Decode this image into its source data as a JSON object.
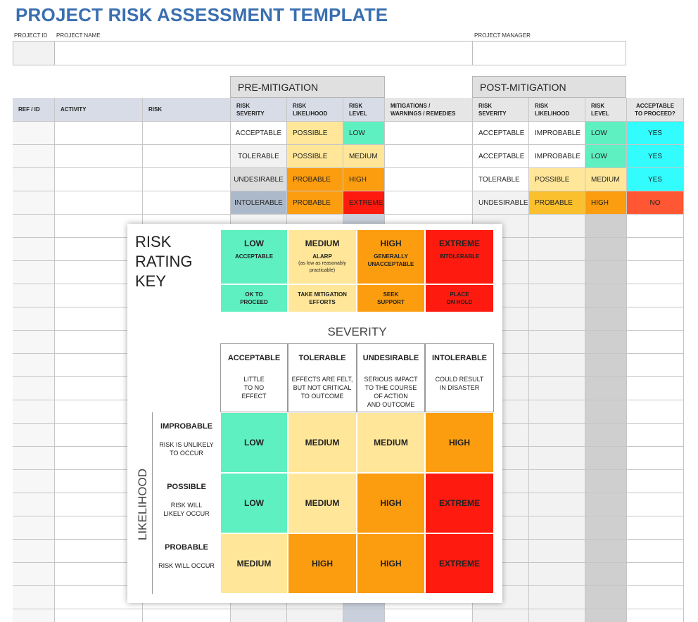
{
  "title": "PROJECT RISK ASSESSMENT TEMPLATE",
  "info": {
    "project_id_label": "PROJECT ID",
    "project_name_label": "PROJECT NAME",
    "project_manager_label": "PROJECT MANAGER"
  },
  "groups": {
    "pre": "PRE-MITIGATION",
    "post": "POST-MITIGATION"
  },
  "columns": {
    "ref": "REF / ID",
    "activity": "ACTIVITY",
    "risk": "RISK",
    "pre_severity": [
      "RISK",
      "SEVERITY"
    ],
    "pre_likelihood": [
      "RISK",
      "LIKELIHOOD"
    ],
    "pre_level": [
      "RISK",
      "LEVEL"
    ],
    "mitigations": [
      "MITIGATIONS /",
      "WARNINGS / REMEDIES"
    ],
    "post_severity": [
      "RISK",
      "SEVERITY"
    ],
    "post_likelihood": [
      "RISK",
      "LIKELIHOOD"
    ],
    "post_level": [
      "RISK",
      "LEVEL"
    ],
    "proceed": [
      "ACCEPTABLE",
      "TO PROCEED?"
    ]
  },
  "rows": [
    {
      "pre_sev": "ACCEPTABLE",
      "pre_lik": "POSSIBLE",
      "pre_lvl": "LOW",
      "post_sev": "ACCEPTABLE",
      "post_lik": "IMPROBABLE",
      "post_lvl": "LOW",
      "proceed": "YES"
    },
    {
      "pre_sev": "TOLERABLE",
      "pre_lik": "POSSIBLE",
      "pre_lvl": "MEDIUM",
      "post_sev": "ACCEPTABLE",
      "post_lik": "IMPROBABLE",
      "post_lvl": "LOW",
      "proceed": "YES"
    },
    {
      "pre_sev": "UNDESIRABLE",
      "pre_lik": "PROBABLE",
      "pre_lvl": "HIGH",
      "post_sev": "TOLERABLE",
      "post_lik": "POSSIBLE",
      "post_lvl": "MEDIUM",
      "proceed": "YES"
    },
    {
      "pre_sev": "INTOLERABLE",
      "pre_lik": "PROBABLE",
      "pre_lvl": "EXTREME",
      "post_sev": "UNDESIRABLE",
      "post_lik": "PROBABLE",
      "post_lvl": "HIGH",
      "proceed": "NO"
    }
  ],
  "key": {
    "title_lines": [
      "RISK",
      "RATING",
      "KEY"
    ],
    "ratings": [
      {
        "level": "LOW",
        "desc": "ACCEPTABLE",
        "note": "",
        "action": [
          "OK TO",
          "PROCEED"
        ],
        "color": "#5ef0c0"
      },
      {
        "level": "MEDIUM",
        "desc": "ALARP",
        "note": "(as low as reasonably practicable)",
        "action": [
          "TAKE MITIGATION",
          "EFFORTS"
        ],
        "color": "#ffe699"
      },
      {
        "level": "HIGH",
        "desc": "GENERALLY UNACCEPTABLE",
        "note": "",
        "action": [
          "SEEK",
          "SUPPORT"
        ],
        "color": "#fb9d0f"
      },
      {
        "level": "EXTREME",
        "desc": "INTOLERABLE",
        "note": "",
        "action": [
          "PLACE",
          "ON HOLD"
        ],
        "color": "#ff1a0f"
      }
    ],
    "severity_label": "SEVERITY",
    "likelihood_label": "LIKELIHOOD",
    "severity": [
      {
        "name": "ACCEPTABLE",
        "desc": [
          "LITTLE",
          "TO NO",
          "EFFECT"
        ]
      },
      {
        "name": "TOLERABLE",
        "desc": [
          "EFFECTS ARE FELT,",
          "BUT NOT CRITICAL",
          "TO OUTCOME"
        ]
      },
      {
        "name": "UNDESIRABLE",
        "desc": [
          "SERIOUS IMPACT",
          "TO THE COURSE",
          "OF ACTION",
          "AND OUTCOME"
        ]
      },
      {
        "name": "INTOLERABLE",
        "desc": [
          "COULD RESULT",
          "IN DISASTER"
        ]
      }
    ],
    "likelihood": [
      {
        "name": "IMPROBABLE",
        "desc": [
          "RISK IS UNLIKELY",
          "TO OCCUR"
        ]
      },
      {
        "name": "POSSIBLE",
        "desc": [
          "RISK WILL",
          "LIKELY OCCUR"
        ]
      },
      {
        "name": "PROBABLE",
        "desc": [
          "RISK WILL OCCUR"
        ]
      }
    ],
    "matrix": [
      [
        "LOW",
        "MEDIUM",
        "MEDIUM",
        "HIGH"
      ],
      [
        "LOW",
        "MEDIUM",
        "HIGH",
        "EXTREME"
      ],
      [
        "MEDIUM",
        "HIGH",
        "HIGH",
        "EXTREME"
      ]
    ]
  },
  "colors": {
    "LOW": "#5ef0c0",
    "MEDIUM": "#ffe699",
    "HIGH": "#fb9d0f",
    "EXTREME": "#ff1a0f",
    "YES": "#33fcff",
    "NO": "#ff5733",
    "header_gray": "#d8dce6",
    "group_gray": "#e0e0e0",
    "title_blue": "#3a6fb0"
  }
}
